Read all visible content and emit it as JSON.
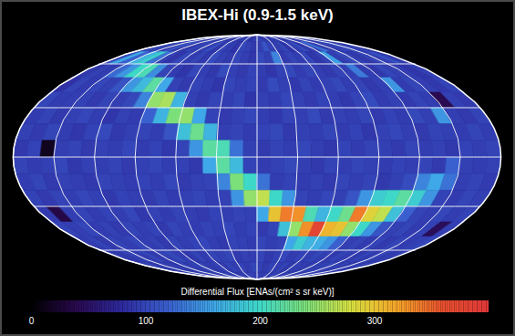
{
  "chart_data": {
    "type": "heatmap",
    "title": "IBEX-Hi (0.9-1.5 keV)",
    "grid": true,
    "x": [
      -175,
      -165,
      -155,
      -145,
      -135,
      -125,
      -115,
      -105,
      -95,
      -85,
      -75,
      -65,
      -55,
      -45,
      -35,
      -25,
      -15,
      -5,
      5,
      15,
      25,
      35,
      45,
      55,
      65,
      75,
      85,
      95,
      105,
      115,
      125,
      135,
      145,
      155,
      165,
      175
    ],
    "y": [
      85,
      75,
      65,
      55,
      45,
      35,
      25,
      15,
      5,
      -5,
      -15,
      -25,
      -35,
      -45,
      -55,
      -65,
      -75,
      -85
    ],
    "values": [
      [
        96,
        92,
        101,
        88,
        94,
        99,
        90,
        97,
        93,
        104,
        89,
        95,
        98,
        91,
        100,
        94,
        87,
        96,
        102,
        93,
        90,
        97,
        95,
        99,
        92,
        88,
        101,
        94,
        96,
        90,
        98,
        93,
        95,
        100,
        91,
        97
      ],
      [
        92,
        105,
        98,
        90,
        112,
        95,
        88,
        101,
        96,
        93,
        107,
        90,
        99,
        94,
        88,
        102,
        97,
        91,
        95,
        110,
        98,
        93,
        100,
        88,
        96,
        104,
        92,
        99,
        130,
        95,
        91,
        98,
        106,
        94,
        100,
        89
      ],
      [
        98,
        160,
        120,
        170,
        190,
        130,
        96,
        88,
        102,
        94,
        99,
        91,
        105,
        97,
        92,
        100,
        95,
        89,
        103,
        96,
        140,
        92,
        99,
        94,
        101,
        88,
        97,
        155,
        93,
        102,
        96,
        90,
        99,
        95,
        108,
        92
      ],
      [
        90,
        97,
        94,
        125,
        150,
        200,
        210,
        145,
        99,
        93,
        88,
        101,
        95,
        90,
        104,
        96,
        92,
        99,
        94,
        88,
        97,
        102,
        93,
        100,
        95,
        91,
        99,
        96,
        135,
        94,
        90,
        101,
        97,
        93,
        88,
        96
      ],
      [
        85,
        99,
        93,
        101,
        96,
        110,
        150,
        175,
        220,
        160,
        97,
        92,
        99,
        94,
        88,
        101,
        95,
        98,
        92,
        104,
        96,
        90,
        99,
        93,
        97,
        102,
        94,
        99,
        91,
        96,
        150,
        93,
        100,
        95,
        90,
        98
      ],
      [
        100,
        94,
        95,
        97,
        92,
        99,
        95,
        102,
        140,
        250,
        260,
        170,
        96,
        91,
        99,
        94,
        100,
        88,
        96,
        93,
        101,
        97,
        92,
        98,
        95,
        90,
        99,
        104,
        93,
        97,
        91,
        99,
        94,
        40,
        96,
        92
      ],
      [
        93,
        99,
        91,
        96,
        101,
        94,
        88,
        97,
        93,
        120,
        170,
        240,
        250,
        160,
        98,
        92,
        96,
        101,
        94,
        90,
        99,
        95,
        103,
        92,
        97,
        94,
        100,
        91,
        98,
        93,
        102,
        96,
        150,
        95,
        91,
        99
      ],
      [
        97,
        92,
        100,
        94,
        89,
        98,
        103,
        91,
        96,
        99,
        94,
        110,
        180,
        230,
        170,
        95,
        99,
        93,
        98,
        102,
        91,
        96,
        94,
        100,
        93,
        98,
        90,
        97,
        101,
        95,
        92,
        99,
        96,
        93,
        100,
        94
      ],
      [
        91,
        98,
        15,
        95,
        99,
        92,
        97,
        94,
        101,
        93,
        98,
        90,
        99,
        150,
        220,
        210,
        130,
        96,
        92,
        99,
        94,
        101,
        95,
        90,
        98,
        93,
        99,
        96,
        92,
        100,
        94,
        97,
        91,
        98,
        95,
        99
      ],
      [
        99,
        93,
        96,
        101,
        90,
        97,
        94,
        99,
        92,
        96,
        100,
        94,
        97,
        91,
        160,
        220,
        175,
        98,
        93,
        97,
        102,
        95,
        91,
        99,
        94,
        100,
        96,
        93,
        98,
        95,
        99,
        92,
        120,
        96,
        94,
        97
      ],
      [
        94,
        100,
        92,
        97,
        95,
        91,
        99,
        96,
        93,
        98,
        94,
        101,
        92,
        97,
        99,
        140,
        240,
        200,
        130,
        94,
        98,
        93,
        97,
        92,
        100,
        95,
        99,
        91,
        96,
        105,
        140,
        160,
        130,
        95,
        99,
        93
      ],
      [
        98,
        92,
        99,
        94,
        101,
        96,
        90,
        98,
        95,
        92,
        99,
        93,
        96,
        100,
        94,
        97,
        150,
        250,
        270,
        200,
        150,
        99,
        94,
        101,
        96,
        110,
        150,
        190,
        200,
        220,
        190,
        150,
        98,
        93,
        100,
        96
      ],
      [
        92,
        35,
        95,
        99,
        93,
        98,
        94,
        101,
        90,
        97,
        93,
        99,
        95,
        92,
        98,
        94,
        99,
        96,
        160,
        300,
        340,
        330,
        210,
        170,
        200,
        230,
        340,
        290,
        270,
        180,
        120,
        99,
        95,
        101,
        94,
        98
      ],
      [
        99,
        95,
        101,
        93,
        97,
        92,
        99,
        94,
        98,
        91,
        100,
        95,
        93,
        99,
        96,
        101,
        94,
        98,
        92,
        99,
        180,
        250,
        330,
        380,
        310,
        300,
        250,
        200,
        150,
        110,
        96,
        100,
        93,
        97,
        45,
        95
      ],
      [
        93,
        98,
        92,
        99,
        95,
        101,
        94,
        97,
        92,
        99,
        94,
        98,
        101,
        95,
        91,
        99,
        96,
        93,
        100,
        94,
        97,
        160,
        190,
        170,
        165,
        150,
        120,
        95,
        99,
        93,
        98,
        92,
        99,
        94,
        96,
        101
      ],
      [
        97,
        91,
        99,
        94,
        100,
        93,
        97,
        102,
        95,
        90,
        98,
        93,
        99,
        96,
        100,
        92,
        97,
        94,
        99,
        91,
        96,
        101,
        93,
        98,
        94,
        100,
        96,
        92,
        99,
        95,
        91,
        98,
        94,
        100,
        93,
        97
      ],
      [
        94,
        99,
        92,
        97,
        95,
        91,
        99,
        94,
        101,
        96,
        93,
        98,
        92,
        99,
        95,
        97,
        93,
        100,
        96,
        92,
        98,
        94,
        99,
        91,
        97,
        95,
        93,
        99,
        96,
        101,
        94,
        98,
        92,
        97,
        95,
        99
      ],
      [
        98,
        93,
        100,
        95,
        92,
        97,
        94,
        99,
        93,
        96,
        101,
        94,
        97,
        92,
        99,
        95,
        100,
        93,
        97,
        94,
        96,
        92,
        99,
        95,
        98,
        93,
        97,
        100,
        94,
        96,
        92,
        99,
        95,
        93,
        98,
        94
      ]
    ],
    "colorbar": {
      "label": "Differential Flux [ENAs/(cm² s sr keV)]",
      "range": [
        0,
        400
      ],
      "ticks": [
        0,
        100,
        200,
        300
      ]
    }
  }
}
